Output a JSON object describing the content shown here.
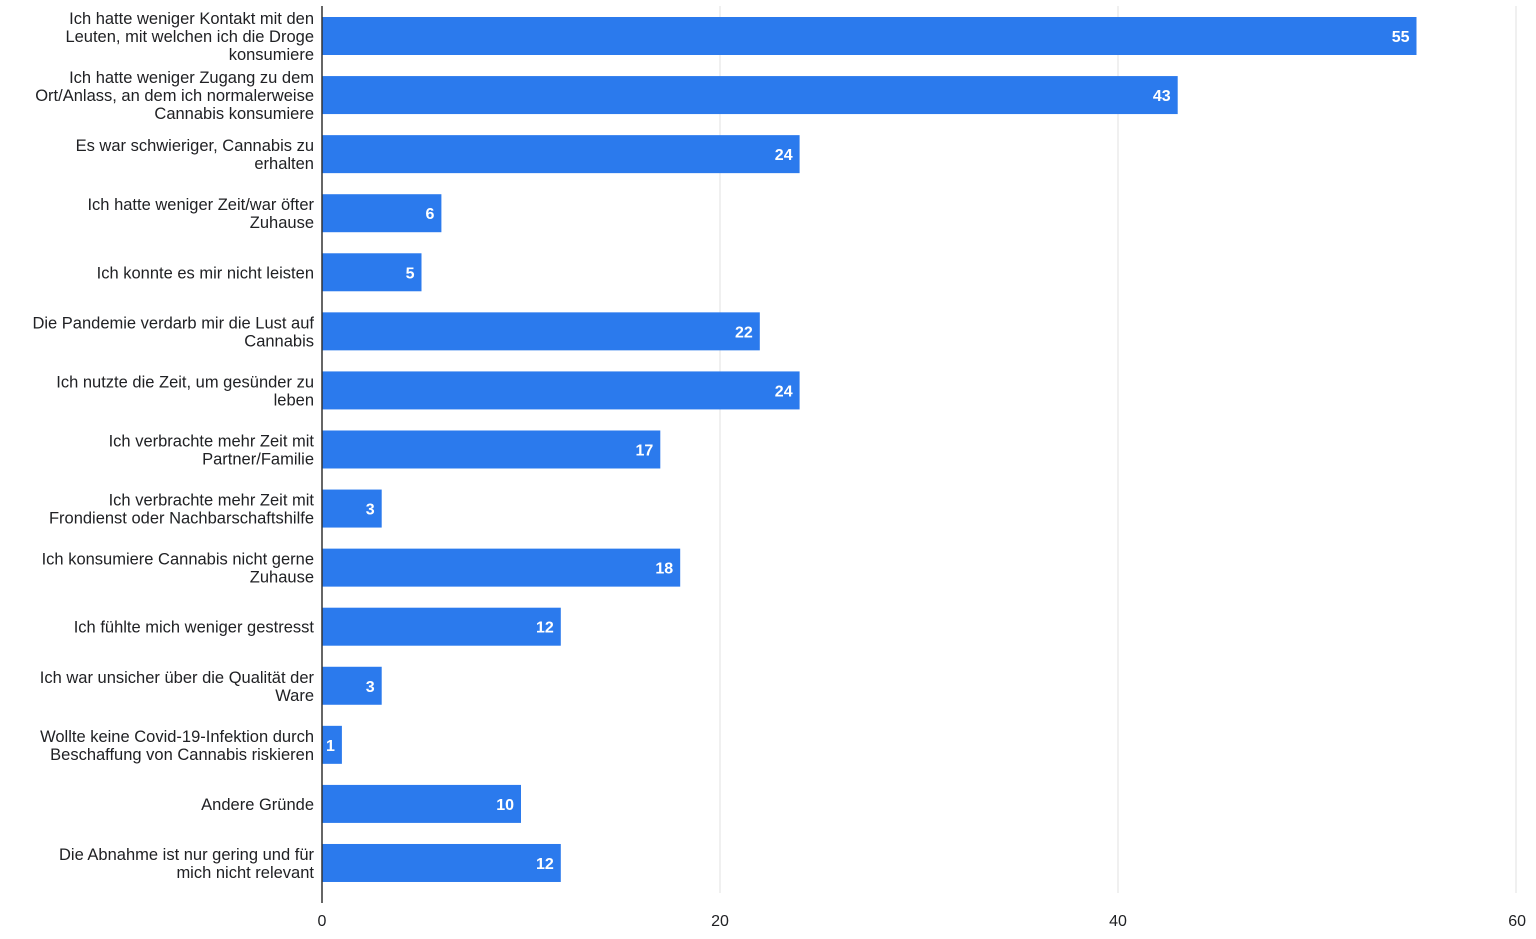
{
  "chart_data": {
    "type": "bar",
    "orientation": "horizontal",
    "categories": [
      "Ich hatte weniger Kontakt mit den Leuten, mit welchen ich die Droge konsumiere",
      "Ich hatte weniger Zugang zu dem Ort/Anlass, an dem ich normalerweise Cannabis konsumiere",
      "Es war schwieriger, Cannabis zu erhalten",
      "Ich hatte weniger Zeit/war öfter Zuhause",
      "Ich konnte es mir nicht leisten",
      "Die Pandemie verdarb mir die Lust auf Cannabis",
      "Ich nutzte die Zeit, um gesünder zu leben",
      "Ich verbrachte mehr Zeit mit Partner/Familie",
      "Ich verbrachte mehr Zeit mit Frondienst oder Nachbarschaftshilfe",
      "Ich konsumiere Cannabis nicht gerne Zuhause",
      "Ich fühlte mich weniger gestresst",
      "Ich war unsicher über die Qualität der Ware",
      "Wollte keine Covid-19-Infektion durch Beschaffung von Cannabis riskieren",
      "Andere Gründe",
      "Die Abnahme ist nur gering und für mich nicht relevant"
    ],
    "category_lines": [
      [
        "Ich hatte weniger Kontakt mit den",
        "Leuten, mit welchen ich die Droge",
        "konsumiere"
      ],
      [
        "Ich hatte weniger Zugang zu dem",
        "Ort/Anlass, an dem ich normalerweise",
        "Cannabis konsumiere"
      ],
      [
        "Es war schwieriger, Cannabis zu",
        "erhalten"
      ],
      [
        "Ich hatte weniger Zeit/war öfter",
        "Zuhause"
      ],
      [
        "Ich konnte es mir nicht leisten"
      ],
      [
        "Die Pandemie verdarb mir die Lust auf",
        "Cannabis"
      ],
      [
        "Ich nutzte die Zeit, um gesünder zu",
        "leben"
      ],
      [
        "Ich verbrachte mehr Zeit mit",
        "Partner/Familie"
      ],
      [
        "Ich verbrachte mehr Zeit mit",
        "Frondienst oder Nachbarschaftshilfe"
      ],
      [
        "Ich konsumiere Cannabis nicht gerne",
        "Zuhause"
      ],
      [
        "Ich fühlte mich weniger gestresst"
      ],
      [
        "Ich war unsicher über die Qualität der",
        "Ware"
      ],
      [
        "Wollte keine Covid-19-Infektion durch",
        "Beschaffung von Cannabis riskieren"
      ],
      [
        "Andere Gründe"
      ],
      [
        "Die Abnahme ist nur gering und für",
        "mich nicht relevant"
      ]
    ],
    "values": [
      55,
      43,
      24,
      6,
      5,
      22,
      24,
      17,
      3,
      18,
      12,
      3,
      1,
      10,
      12
    ],
    "title": "",
    "xlabel": "",
    "ylabel": "",
    "xlim": [
      0,
      60
    ],
    "xticks": [
      0,
      20,
      40,
      60
    ],
    "grid": true,
    "legend": "none",
    "bar_color": "#2b7aed",
    "value_label_color": "#ffffff"
  }
}
